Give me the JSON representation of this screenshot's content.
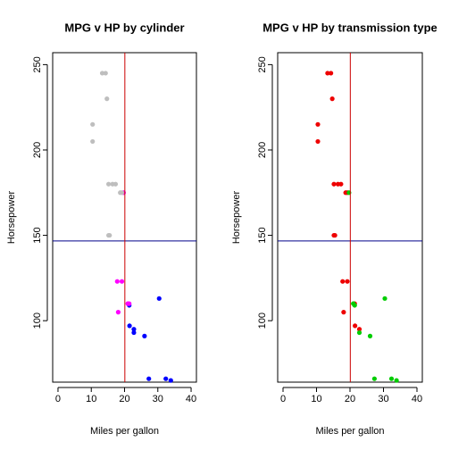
{
  "chart_data": [
    {
      "type": "scatter",
      "title": "MPG v HP by cylinder",
      "xlabel": "Miles per gallon",
      "ylabel": "Horsepower",
      "xlim": [
        -1.6,
        41.6
      ],
      "xticks": [
        0,
        10,
        20,
        30,
        40
      ],
      "ylim": [
        64,
        257
      ],
      "yticks": [
        100,
        150,
        200,
        250
      ],
      "hline": {
        "value": 146.7,
        "color": "#00008b"
      },
      "vline": {
        "value": 20.09,
        "color": "#cc0000"
      },
      "series": [
        {
          "color": "#0000ff",
          "x": [
            22.8,
            22.8,
            32.4,
            33.9,
            21.5,
            27.3,
            26.0,
            30.4,
            21.4
          ],
          "values": [
            93,
            95,
            66,
            65,
            97,
            66,
            91,
            113,
            109
          ]
        },
        {
          "color": "#ff00ff",
          "x": [
            21.0,
            21.0,
            21.4,
            18.1,
            19.2,
            17.8,
            19.7
          ],
          "values": [
            110,
            110,
            110,
            105,
            123,
            123,
            175
          ]
        },
        {
          "color": "#bebebe",
          "x": [
            18.7,
            14.3,
            16.4,
            17.3,
            15.2,
            10.4,
            10.4,
            14.7,
            15.5,
            15.2,
            13.3,
            19.2
          ],
          "values": [
            175,
            245,
            180,
            180,
            180,
            205,
            215,
            230,
            150,
            150,
            245,
            175
          ]
        }
      ]
    },
    {
      "type": "scatter",
      "title": "MPG v HP by transmission type",
      "xlabel": "Miles per gallon",
      "ylabel": "Horsepower",
      "xlim": [
        -1.6,
        41.6
      ],
      "xticks": [
        0,
        10,
        20,
        30,
        40
      ],
      "ylim": [
        64,
        257
      ],
      "yticks": [
        100,
        150,
        200,
        250
      ],
      "hline": {
        "value": 146.7,
        "color": "#00008b"
      },
      "vline": {
        "value": 20.09,
        "color": "#cc0000"
      },
      "series": [
        {
          "color": "#ee0000",
          "x": [
            21.4,
            18.7,
            18.1,
            14.3,
            22.8,
            19.2,
            17.8,
            16.4,
            17.3,
            15.2,
            10.4,
            10.4,
            14.7,
            21.5,
            15.5,
            15.2,
            13.3,
            19.2
          ],
          "values": [
            110,
            175,
            105,
            245,
            95,
            123,
            123,
            180,
            180,
            180,
            205,
            215,
            230,
            97,
            150,
            150,
            245,
            175
          ]
        },
        {
          "color": "#00cd00",
          "x": [
            21.0,
            21.0,
            22.8,
            32.4,
            33.9,
            27.3,
            26.0,
            30.4,
            19.7,
            21.4
          ],
          "values": [
            110,
            110,
            93,
            66,
            65,
            66,
            91,
            113,
            175,
            109
          ]
        }
      ]
    }
  ]
}
